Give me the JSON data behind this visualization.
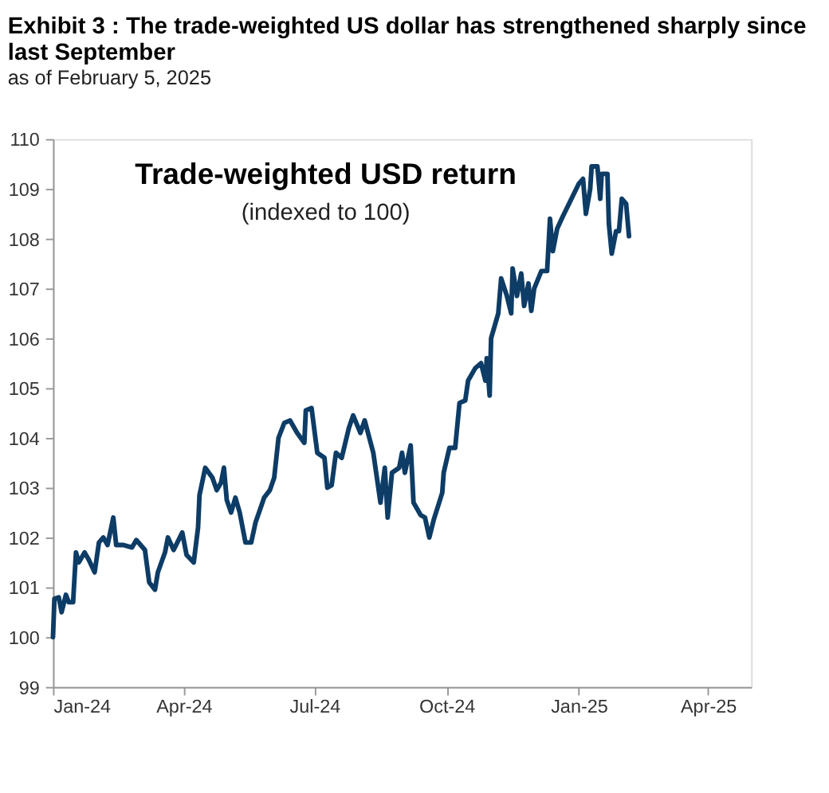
{
  "chart_data": {
    "type": "line",
    "title": "Exhibit 3 : The trade-weighted US dollar has strengthened sharply since last September",
    "subtitle": "as of February 5, 2025",
    "annotations": [
      "Trade-weighted USD return",
      "(indexed to 100)"
    ],
    "xlim": [
      "2024-01-01",
      "2025-05-01"
    ],
    "xticks": [
      {
        "value": "2024-01-01",
        "label": "Jan-24"
      },
      {
        "value": "2024-04-01",
        "label": "Apr-24"
      },
      {
        "value": "2024-07-01",
        "label": "Jul-24"
      },
      {
        "value": "2024-10-01",
        "label": "Oct-24"
      },
      {
        "value": "2025-01-01",
        "label": "Jan-25"
      },
      {
        "value": "2025-04-01",
        "label": "Apr-25"
      }
    ],
    "ylim": [
      99,
      110
    ],
    "yticks": [
      99,
      100,
      101,
      102,
      103,
      104,
      105,
      106,
      107,
      108,
      109,
      110
    ],
    "grid": false,
    "line_style": "solid",
    "marker": "none",
    "series": [
      {
        "color": "#0d3c66",
        "x": [
          "2024-01-01",
          "2024-01-02",
          "2024-01-05",
          "2024-01-07",
          "2024-01-10",
          "2024-01-12",
          "2024-01-15",
          "2024-01-17",
          "2024-01-19",
          "2024-01-23",
          "2024-01-26",
          "2024-01-30",
          "2024-02-02",
          "2024-02-05",
          "2024-02-08",
          "2024-02-12",
          "2024-02-14",
          "2024-02-19",
          "2024-02-25",
          "2024-02-28",
          "2024-03-05",
          "2024-03-08",
          "2024-03-12",
          "2024-03-14",
          "2024-03-19",
          "2024-03-21",
          "2024-03-25",
          "2024-03-31",
          "2024-04-03",
          "2024-04-08",
          "2024-04-11",
          "2024-04-12",
          "2024-04-16",
          "2024-04-21",
          "2024-04-24",
          "2024-04-27",
          "2024-04-29",
          "2024-05-01",
          "2024-05-04",
          "2024-05-07",
          "2024-05-10",
          "2024-05-14",
          "2024-05-18",
          "2024-05-21",
          "2024-05-24",
          "2024-05-27",
          "2024-05-31",
          "2024-06-03",
          "2024-06-06",
          "2024-06-10",
          "2024-06-14",
          "2024-06-19",
          "2024-06-24",
          "2024-06-25",
          "2024-06-29",
          "2024-07-03",
          "2024-07-08",
          "2024-07-10",
          "2024-07-13",
          "2024-07-16",
          "2024-07-20",
          "2024-07-25",
          "2024-07-28",
          "2024-08-02",
          "2024-08-05",
          "2024-08-11",
          "2024-08-16",
          "2024-08-19",
          "2024-08-21",
          "2024-08-24",
          "2024-08-29",
          "2024-08-31",
          "2024-09-02",
          "2024-09-06",
          "2024-09-08",
          "2024-09-13",
          "2024-09-16",
          "2024-09-19",
          "2024-09-22",
          "2024-09-28",
          "2024-09-29",
          "2024-10-03",
          "2024-10-07",
          "2024-10-10",
          "2024-10-14",
          "2024-10-16",
          "2024-10-21",
          "2024-10-25",
          "2024-10-28",
          "2024-10-29",
          "2024-10-31",
          "2024-11-01",
          "2024-11-06",
          "2024-11-08",
          "2024-11-12",
          "2024-11-15",
          "2024-11-16",
          "2024-11-19",
          "2024-11-22",
          "2024-11-24",
          "2024-11-27",
          "2024-11-29",
          "2024-12-01",
          "2024-12-06",
          "2024-12-10",
          "2024-12-12",
          "2024-12-14",
          "2024-12-17",
          "2024-12-21",
          "2025-01-01",
          "2025-01-04",
          "2025-01-06",
          "2025-01-09",
          "2025-01-10",
          "2025-01-14",
          "2025-01-16",
          "2025-01-17",
          "2025-01-21",
          "2025-01-22",
          "2025-01-24",
          "2025-01-27",
          "2025-01-29",
          "2025-01-31",
          "2025-02-03",
          "2025-02-05"
        ],
        "values": [
          100.0,
          100.77,
          100.8,
          100.5,
          100.85,
          100.7,
          100.7,
          101.7,
          101.5,
          101.7,
          101.55,
          101.3,
          101.9,
          102.0,
          101.85,
          102.4,
          101.85,
          101.85,
          101.8,
          101.95,
          101.75,
          101.1,
          100.95,
          101.3,
          101.7,
          102.0,
          101.75,
          102.1,
          101.65,
          101.5,
          102.2,
          102.85,
          103.4,
          103.2,
          102.95,
          103.1,
          103.4,
          102.75,
          102.5,
          102.8,
          102.5,
          101.9,
          101.9,
          102.3,
          102.55,
          102.8,
          102.95,
          103.2,
          104.0,
          104.3,
          104.35,
          104.1,
          103.9,
          104.55,
          104.6,
          103.7,
          103.6,
          103.0,
          103.05,
          103.7,
          103.6,
          104.2,
          104.45,
          104.1,
          104.35,
          103.7,
          102.7,
          103.4,
          102.4,
          103.3,
          103.4,
          103.7,
          103.3,
          103.85,
          102.7,
          102.45,
          102.4,
          102.0,
          102.35,
          102.9,
          103.3,
          103.8,
          103.8,
          104.7,
          104.75,
          105.15,
          105.4,
          105.5,
          105.15,
          105.6,
          104.85,
          106.0,
          106.5,
          107.2,
          106.85,
          106.5,
          107.4,
          106.85,
          107.3,
          106.65,
          107.1,
          106.55,
          107.0,
          107.35,
          107.35,
          108.4,
          107.75,
          108.2,
          108.45,
          109.1,
          109.2,
          108.5,
          109.0,
          109.45,
          109.45,
          108.8,
          109.3,
          109.3,
          108.3,
          107.7,
          108.15,
          108.15,
          108.8,
          108.7,
          108.05
        ]
      }
    ]
  }
}
